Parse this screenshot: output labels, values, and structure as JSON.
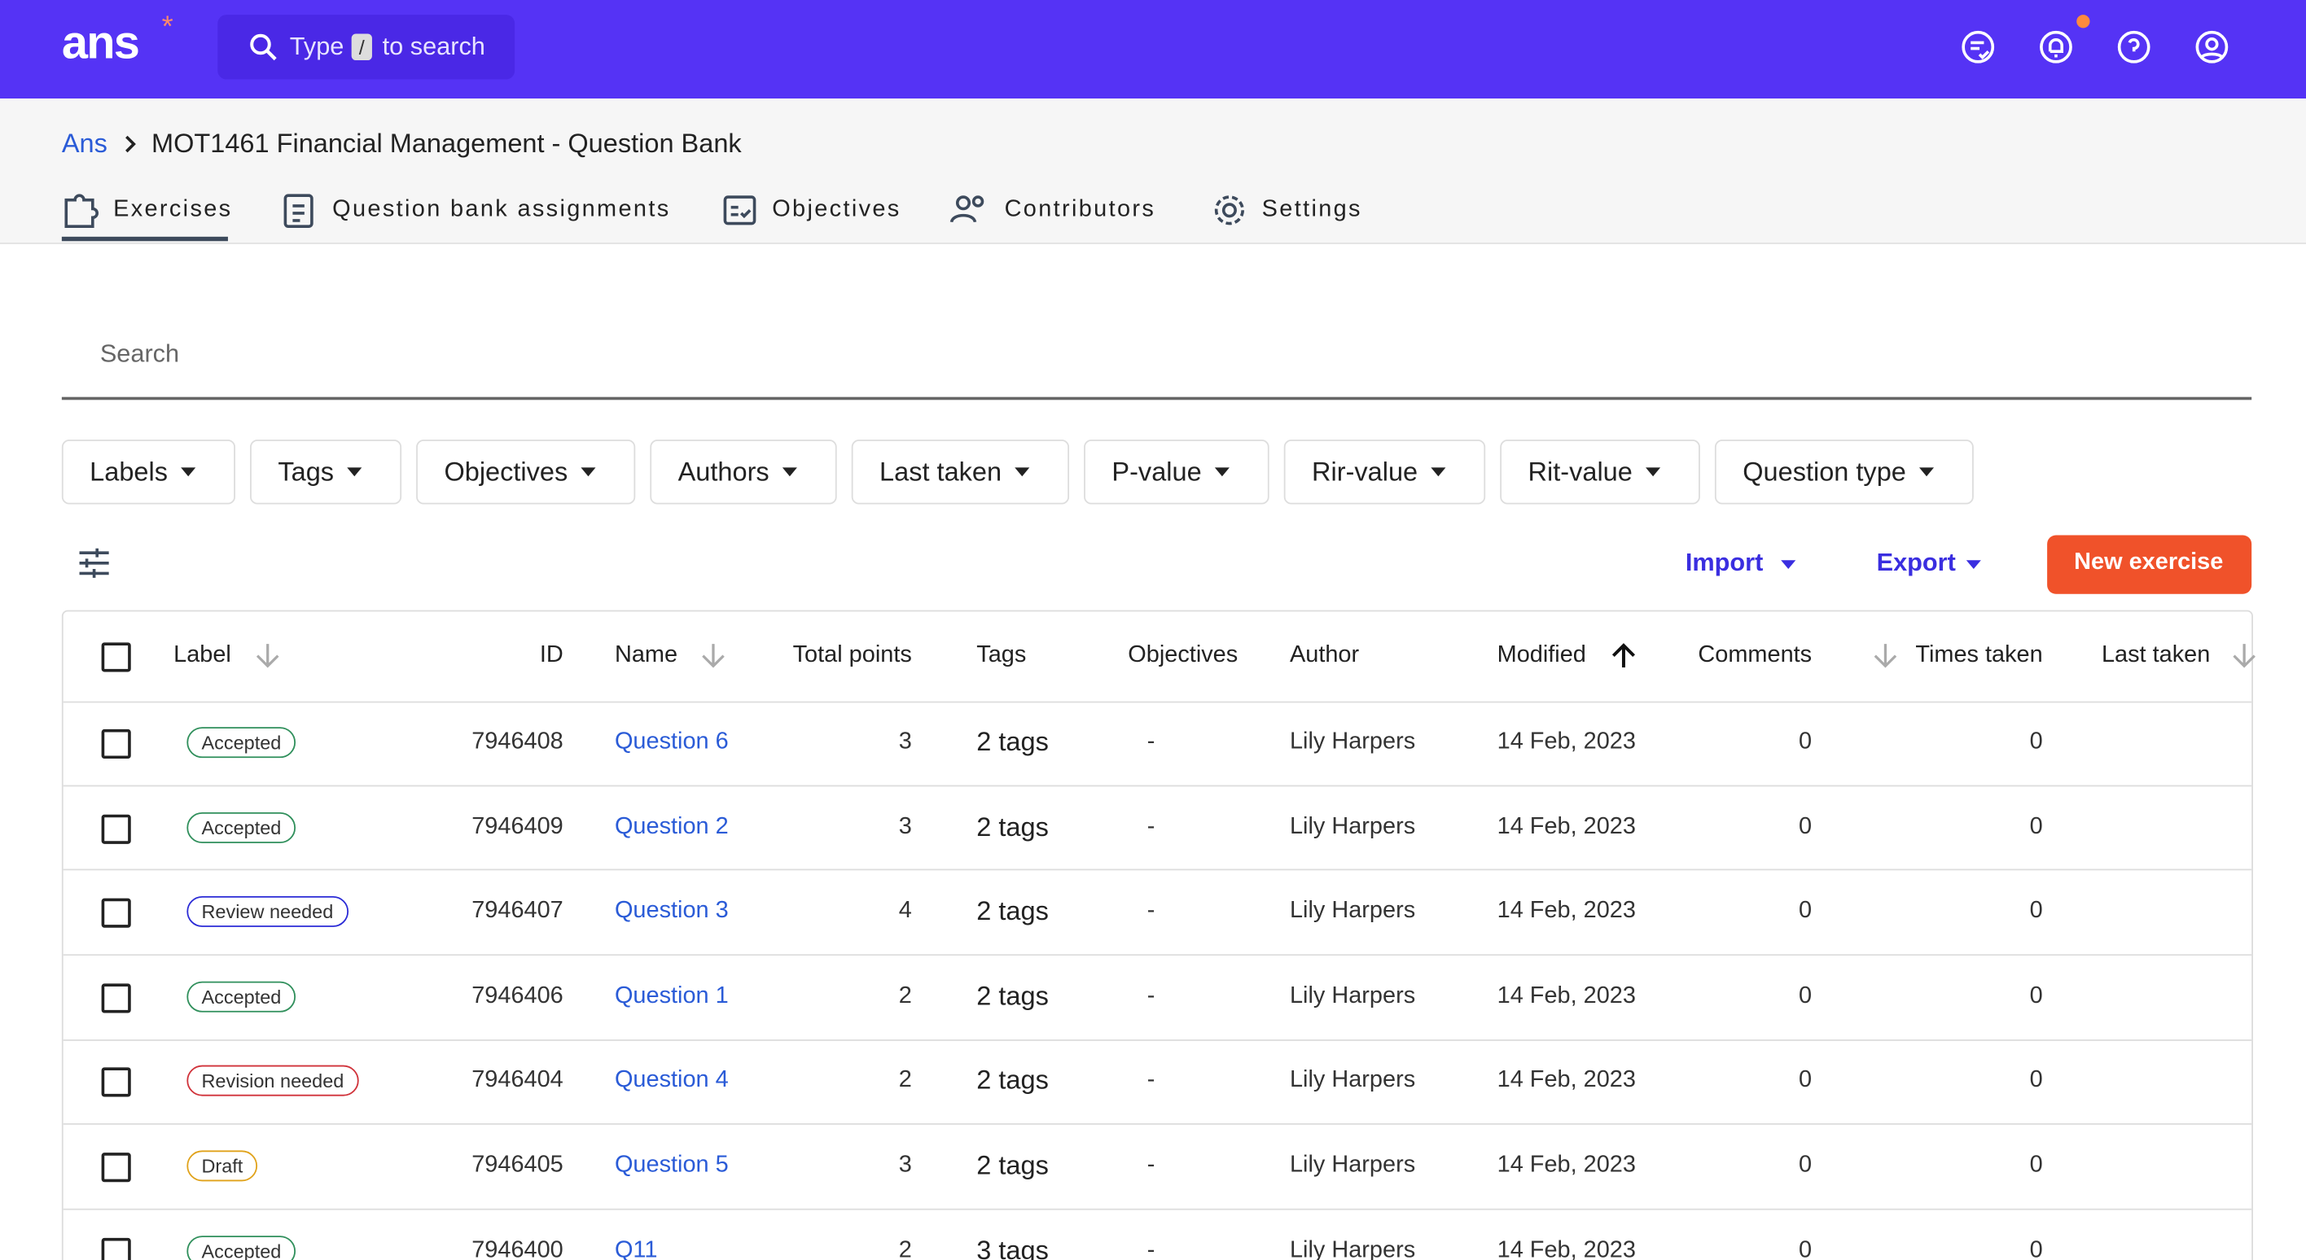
{
  "header": {
    "logo": "ans",
    "logo_mark": "*",
    "search_prefix": "Type",
    "search_key": "/",
    "search_suffix": "to search"
  },
  "breadcrumb": {
    "root": "Ans",
    "title": "MOT1461 Financial Management - Question Bank"
  },
  "tabs": [
    "Exercises",
    "Question bank assignments",
    "Objectives",
    "Contributors",
    "Settings"
  ],
  "search": {
    "placeholder": "Search"
  },
  "filters": [
    "Labels",
    "Tags",
    "Objectives",
    "Authors",
    "Last taken",
    "P-value",
    "Rir-value",
    "Rit-value",
    "Question type"
  ],
  "actions": {
    "import": "Import",
    "export": "Export",
    "new": "New exercise"
  },
  "table": {
    "columns": [
      "Label",
      "ID",
      "Name",
      "Total points",
      "Tags",
      "Objectives",
      "Author",
      "Modified",
      "Comments",
      "Times taken",
      "Last taken"
    ],
    "rows": [
      {
        "label": "Accepted",
        "label_color": "#2f8f5b",
        "id": 7946408,
        "name": "Question 6",
        "total_points": 3,
        "tags": "2 tags",
        "objectives": "-",
        "author": "Lily Harpers",
        "modified": "14 Feb, 2023",
        "comments": 0,
        "times_taken": 0
      },
      {
        "label": "Accepted",
        "label_color": "#2f8f5b",
        "id": 7946409,
        "name": "Question 2",
        "total_points": 3,
        "tags": "2 tags",
        "objectives": "-",
        "author": "Lily Harpers",
        "modified": "14 Feb, 2023",
        "comments": 0,
        "times_taken": 0
      },
      {
        "label": "Review needed",
        "label_color": "#2b2bd6",
        "id": 7946407,
        "name": "Question 3",
        "total_points": 4,
        "tags": "2 tags",
        "objectives": "-",
        "author": "Lily Harpers",
        "modified": "14 Feb, 2023",
        "comments": 0,
        "times_taken": 0
      },
      {
        "label": "Accepted",
        "label_color": "#2f8f5b",
        "id": 7946406,
        "name": "Question 1",
        "total_points": 2,
        "tags": "2 tags",
        "objectives": "-",
        "author": "Lily Harpers",
        "modified": "14 Feb, 2023",
        "comments": 0,
        "times_taken": 0
      },
      {
        "label": "Revision needed",
        "label_color": "#d0323a",
        "id": 7946404,
        "name": "Question 4",
        "total_points": 2,
        "tags": "2 tags",
        "objectives": "-",
        "author": "Lily Harpers",
        "modified": "14 Feb, 2023",
        "comments": 0,
        "times_taken": 0
      },
      {
        "label": "Draft",
        "label_color": "#e0a21a",
        "id": 7946405,
        "name": "Question 5",
        "total_points": 3,
        "tags": "2 tags",
        "objectives": "-",
        "author": "Lily Harpers",
        "modified": "14 Feb, 2023",
        "comments": 0,
        "times_taken": 0
      },
      {
        "label": "Accepted",
        "label_color": "#2f8f5b",
        "id": 7946400,
        "name": "Q11",
        "total_points": 2,
        "tags": "3 tags",
        "objectives": "-",
        "author": "Lily Harpers",
        "modified": "14 Feb, 2023",
        "comments": 0,
        "times_taken": 0
      }
    ]
  }
}
